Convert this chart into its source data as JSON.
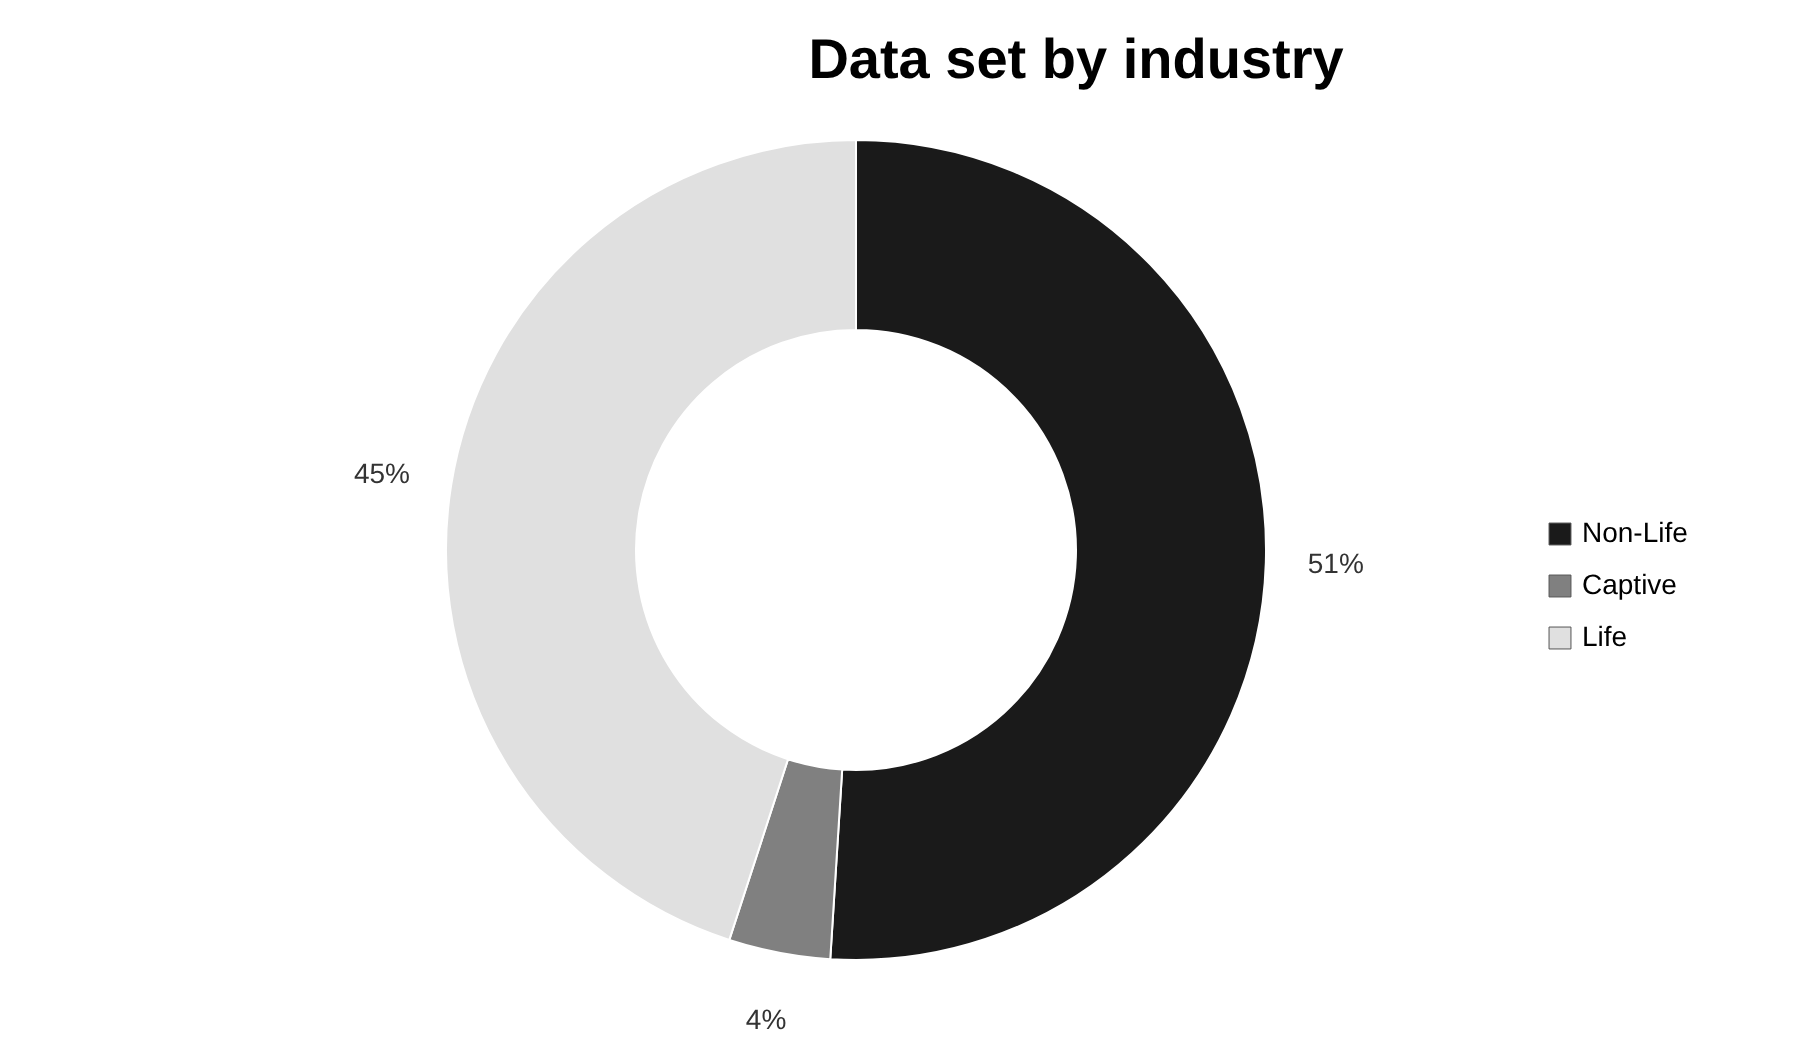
{
  "chart_data": {
    "type": "donut",
    "title": "Data set by industry",
    "categories": [
      "Non-Life",
      "Captive",
      "Life"
    ],
    "values": [
      51,
      4,
      45
    ],
    "colors": [
      "#1a1a1a",
      "#808080",
      "#e0e0e0"
    ],
    "value_labels": [
      "51%",
      "4%",
      "45%"
    ],
    "legend": "right"
  }
}
